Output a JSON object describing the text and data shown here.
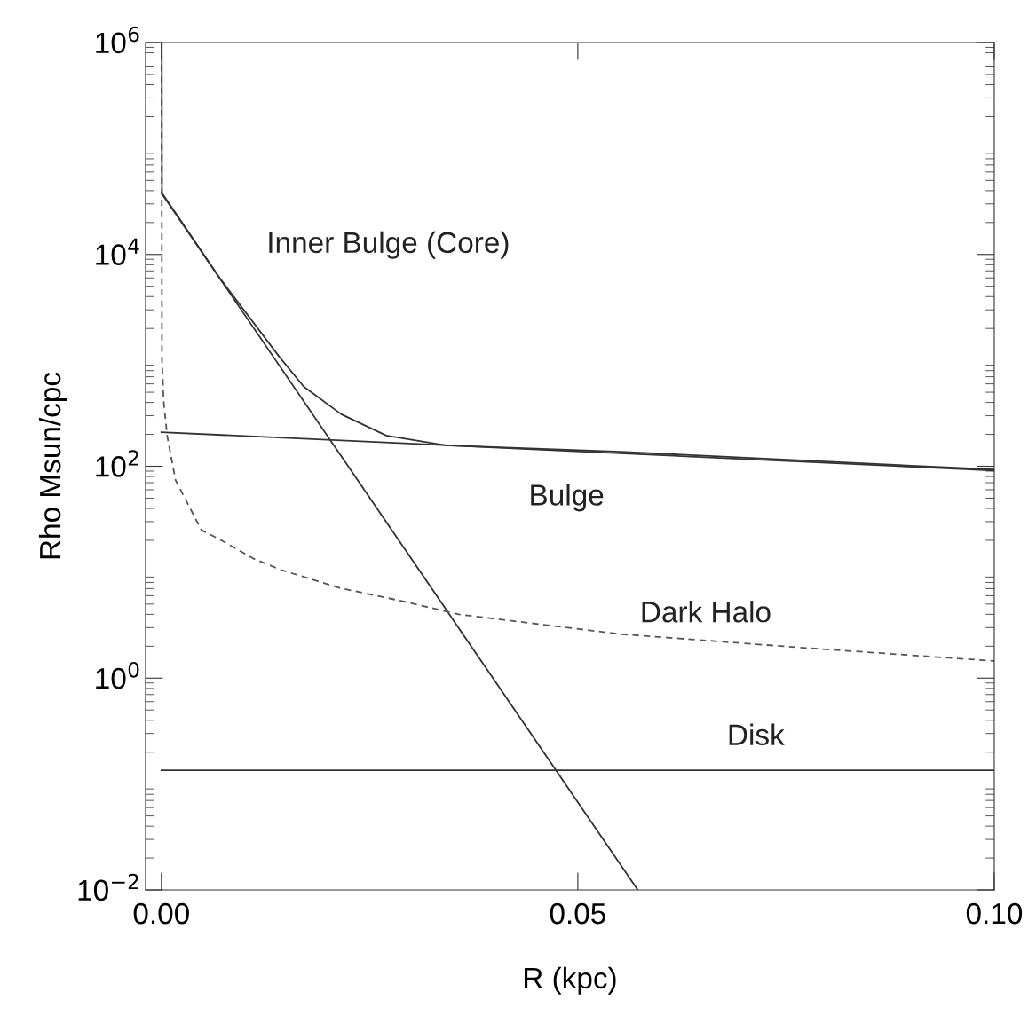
{
  "chart_data": {
    "type": "line",
    "xlabel": "R (kpc)",
    "ylabel": "Rho Msun/cpc",
    "log": "y",
    "xlim": [
      -0.0019,
      0.1
    ],
    "xticks": [
      {
        "value": 0,
        "label": "0.00"
      },
      {
        "value": 0.05,
        "label": "0.05"
      },
      {
        "value": 0.1,
        "label": "0.10"
      }
    ],
    "ylim": [
      0.01,
      1000000
    ],
    "yticks": [
      {
        "value": 0.01,
        "label": "10$^{−2}$"
      },
      {
        "value": 1,
        "label": "10$^{0}$"
      },
      {
        "value": 100,
        "label": "10$^{2}$"
      },
      {
        "value": 10000,
        "label": "10$^{4}$"
      },
      {
        "value": 1000000,
        "label": "10$^{6}$"
      }
    ],
    "grid": false,
    "legend": false,
    "marker": "none",
    "series": [
      {
        "name": "Inner Bulge (Core)",
        "color": "#333333",
        "line_style": "solid",
        "x": [
          0.0,
          0.0572
        ],
        "values": [
          38000,
          0.01
        ]
      },
      {
        "name": "Bulge",
        "color": "#333333",
        "line_style": "solid",
        "x": [
          0.0,
          0.1
        ],
        "values": [
          210,
          91
        ]
      },
      {
        "name": "Dark Halo",
        "color": "#555555",
        "line_style": "dashed",
        "x": [
          3e-05,
          7e-05,
          0.00028,
          0.00069,
          0.0017,
          0.0048,
          0.0072,
          0.011,
          0.0144,
          0.0214,
          0.0286,
          0.0357,
          0.0552,
          0.0765,
          0.1
        ],
        "values": [
          1000000,
          1000,
          407,
          195,
          74,
          25,
          20,
          13.5,
          10.5,
          7.1,
          5.4,
          4.0,
          2.6,
          1.95,
          1.45
        ]
      },
      {
        "name": "Disk",
        "color": "#333333",
        "line_style": "solid",
        "x": [
          0.0,
          0.1
        ],
        "values": [
          0.135,
          0.135
        ]
      },
      {
        "color": "#333333",
        "line_style": "solid",
        "x": [
          5e-05,
          7e-05,
          0.007,
          0.0142,
          0.0171,
          0.0216,
          0.027,
          0.0341,
          0.0552,
          0.1
        ],
        "values": [
          1000000,
          38000,
          6000,
          1070,
          565,
          310,
          195,
          158,
          137,
          93
        ]
      }
    ]
  }
}
